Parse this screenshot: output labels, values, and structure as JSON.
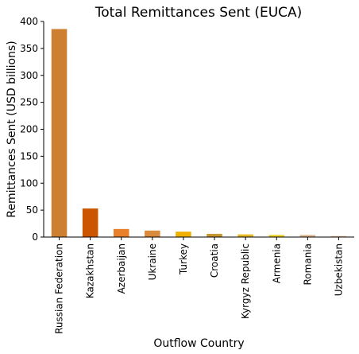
{
  "chart_data": {
    "type": "bar",
    "title": "Total Remittances Sent (EUCA)",
    "xlabel": "Outflow Country",
    "ylabel": "Remittances Sent (USD billions)",
    "ylim": [
      0,
      400
    ],
    "yticks": [
      0,
      50,
      100,
      150,
      200,
      250,
      300,
      350,
      400
    ],
    "grid": false,
    "legend": "none",
    "categories": [
      "Russian Federation",
      "Kazakhstan",
      "Azerbaijan",
      "Ukraine",
      "Turkey",
      "Croatia",
      "Kyrgyz Republic",
      "Armenia",
      "Romania",
      "Uzbekistan"
    ],
    "values": [
      386,
      53,
      15,
      12,
      10,
      6,
      5,
      4,
      4,
      2
    ],
    "colors": [
      "#cd7f32",
      "#cc5500",
      "#e87f2b",
      "#d98a3d",
      "#f0b000",
      "#c8962e",
      "#e8b820",
      "#f0d020",
      "#e0b890",
      "#e8c09a"
    ]
  }
}
